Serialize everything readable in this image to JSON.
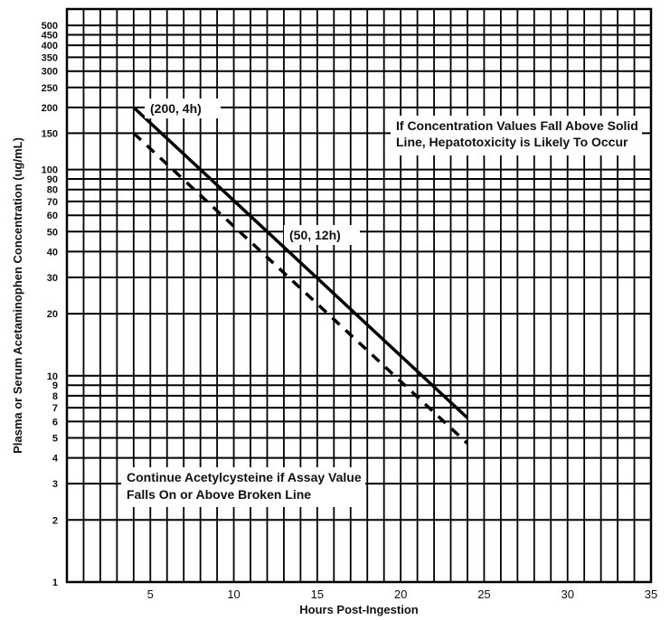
{
  "chart_data": {
    "type": "line",
    "scale_y": "log",
    "xlim": [
      0,
      35
    ],
    "ylim": [
      1,
      600
    ],
    "grid": true,
    "xlabel": "Hours Post-Ingestion",
    "ylabel": "Plasma or Serum Acetaminophen Concentration (ug/mL)",
    "x_ticks": [
      5,
      10,
      15,
      20,
      25,
      30,
      35
    ],
    "y_ticks": [
      1,
      2,
      3,
      4,
      5,
      6,
      7,
      8,
      9,
      10,
      20,
      30,
      40,
      50,
      60,
      70,
      80,
      90,
      100,
      150,
      200,
      250,
      300,
      350,
      400,
      450,
      500
    ],
    "series": [
      {
        "style": "solid",
        "x": [
          4,
          24
        ],
        "y": [
          200,
          6.25
        ]
      },
      {
        "style": "dashed",
        "x": [
          4,
          24
        ],
        "y": [
          150,
          4.7
        ]
      }
    ],
    "annotations": {
      "point_200_4h": "(200, 4h)",
      "point_50_12h": "(50, 12h)",
      "solid_line_note_1": "If Concentration Values Fall Above Solid",
      "solid_line_note_2": "Line, Hepatotoxicity is Likely To Occur",
      "broken_line_note_1": "Continue Acetylcysteine if Assay Value",
      "broken_line_note_2": "Falls On or Above Broken Line"
    }
  }
}
